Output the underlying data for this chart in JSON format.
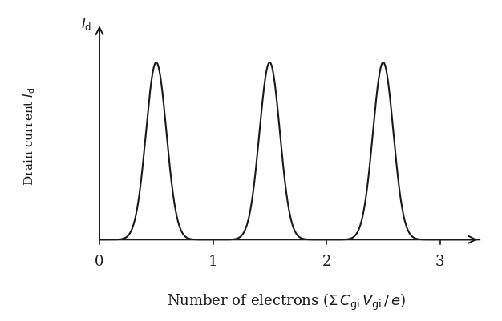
{
  "peak_centers": [
    0.5,
    1.5,
    2.5
  ],
  "peak_sigma": 0.09,
  "peak_amplitude": 1.0,
  "x_min": 0.0,
  "x_max": 3.25,
  "y_min": 0.0,
  "y_max": 1.18,
  "xticks": [
    0,
    1,
    2,
    3
  ],
  "line_color": "#1a1a1a",
  "line_width": 1.5,
  "background_color": "#ffffff",
  "ylabel_fontsize": 11,
  "xlabel_fontsize": 13,
  "tick_fontsize": 13,
  "Id_label_fontsize": 12
}
